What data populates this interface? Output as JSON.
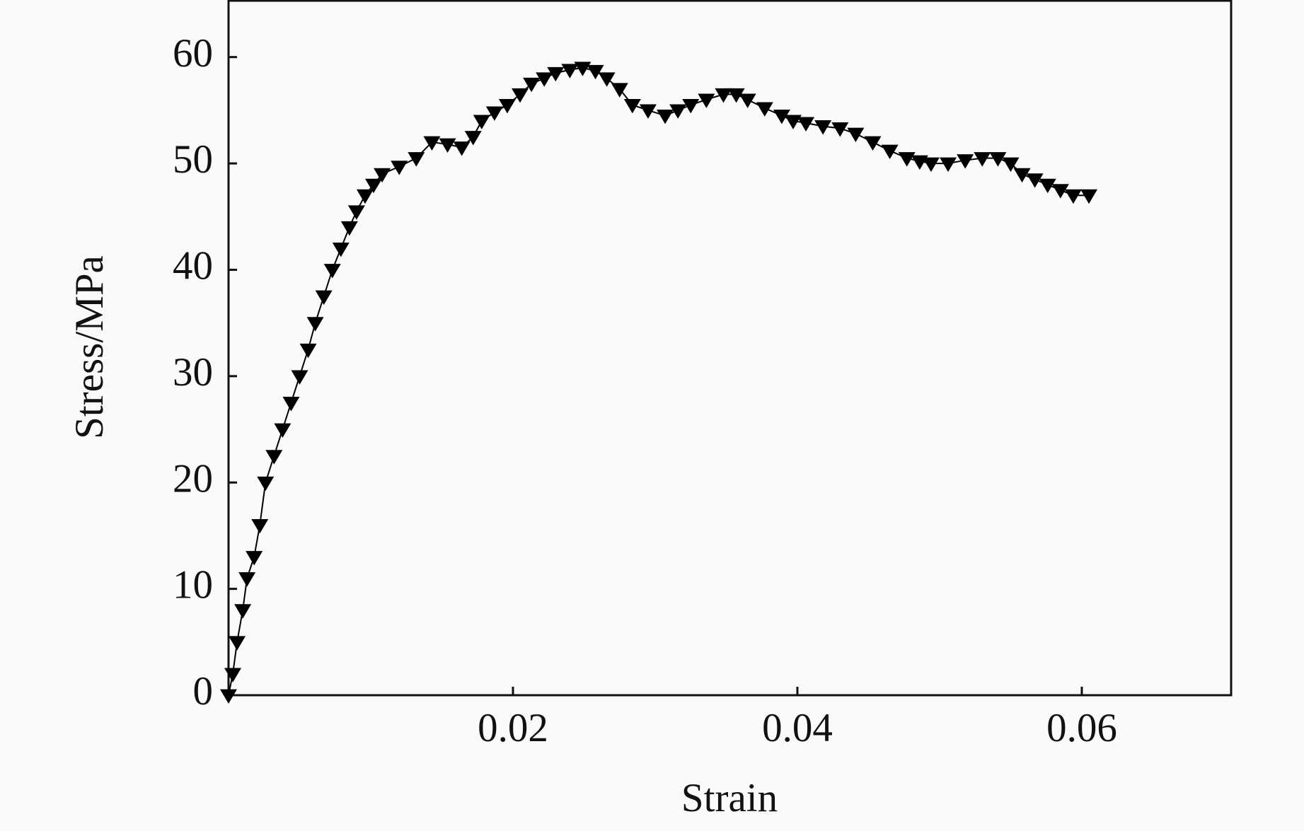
{
  "chart_data": {
    "type": "line",
    "x_label": "Strain",
    "y_label": "Stress/MPa",
    "x": [
      0,
      0.0003,
      0.0006,
      0.001,
      0.0013,
      0.0018,
      0.0022,
      0.0026,
      0.0032,
      0.0038,
      0.0044,
      0.005,
      0.0056,
      0.0061,
      0.0067,
      0.0073,
      0.0079,
      0.0085,
      0.009,
      0.0096,
      0.0102,
      0.0108,
      0.012,
      0.0132,
      0.0143,
      0.0154,
      0.0164,
      0.0172,
      0.0178,
      0.0187,
      0.0196,
      0.0205,
      0.0213,
      0.0222,
      0.023,
      0.024,
      0.0249,
      0.0258,
      0.0266,
      0.0275,
      0.0284,
      0.0295,
      0.0307,
      0.0316,
      0.0325,
      0.0336,
      0.0348,
      0.0357,
      0.0365,
      0.0377,
      0.0389,
      0.0397,
      0.0406,
      0.0418,
      0.043,
      0.0441,
      0.0453,
      0.0465,
      0.0477,
      0.0486,
      0.0494,
      0.0506,
      0.0518,
      0.053,
      0.0541,
      0.055,
      0.0558,
      0.0567,
      0.0576,
      0.0585,
      0.0594,
      0.0605
    ],
    "series": [
      {
        "name": "Stress",
        "color": "#000000",
        "values": [
          0,
          2,
          5,
          8,
          11,
          13,
          16,
          20,
          22.5,
          25,
          27.5,
          30,
          32.5,
          35,
          37.5,
          40,
          42,
          44,
          45.5,
          47,
          48,
          49,
          49.7,
          50.5,
          52,
          51.8,
          51.5,
          52.5,
          54,
          54.8,
          55.5,
          56.5,
          57.5,
          58,
          58.5,
          58.8,
          59,
          58.7,
          58,
          57,
          55.5,
          55,
          54.5,
          55,
          55.5,
          56,
          56.5,
          56.5,
          56,
          55.2,
          54.5,
          54,
          53.8,
          53.5,
          53.3,
          52.8,
          52,
          51.2,
          50.5,
          50.2,
          50,
          50,
          50.3,
          50.5,
          50.5,
          50,
          49,
          48.5,
          48,
          47.5,
          47,
          47
        ]
      }
    ],
    "xlim": [
      0,
      0.0705
    ],
    "ylim": [
      0,
      65.3
    ],
    "xticks": [
      0.02,
      0.04,
      0.06
    ],
    "yticks": [
      0,
      10,
      20,
      30,
      40,
      50,
      60
    ],
    "marker": "triangle-down",
    "grid": false
  }
}
